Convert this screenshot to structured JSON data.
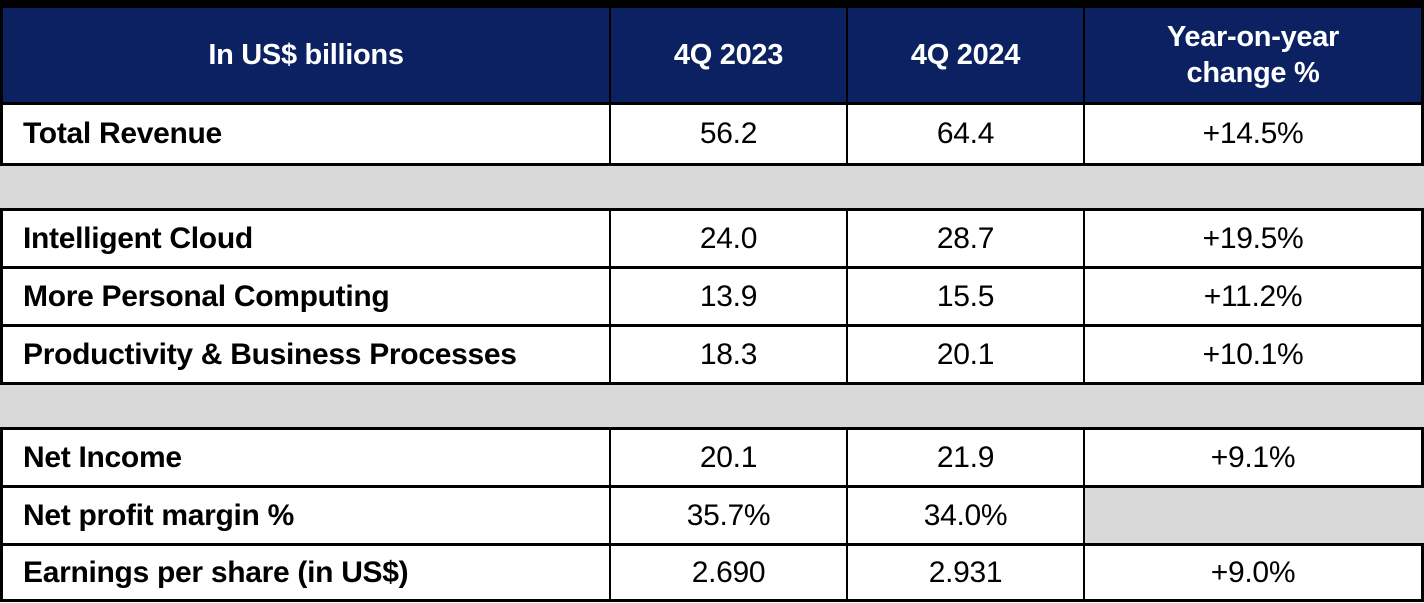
{
  "meta": {
    "description": "Quarterly financial results table comparing 4Q 2023 vs 4Q 2024 in US$ billions"
  },
  "colors": {
    "header_bg": "#0B2161",
    "header_text": "#FFFFFF",
    "spacer_gray": "#D9D9D9",
    "border": "#000000",
    "row_bg": "#FFFFFF",
    "body_text": "#000000"
  },
  "header": {
    "columns": [
      "In US$ billions",
      "4Q 2023",
      "4Q 2024",
      "Year-on-year change %"
    ]
  },
  "table": {
    "rows": [
      {
        "type": "data",
        "label": "Total Revenue",
        "q4_2023": "56.2",
        "q4_2024": "64.4",
        "yoy": "+14.5%"
      },
      {
        "type": "spacer"
      },
      {
        "type": "data",
        "label": "Intelligent Cloud",
        "q4_2023": "24.0",
        "q4_2024": "28.7",
        "yoy": "+19.5%"
      },
      {
        "type": "data",
        "label": "More Personal Computing",
        "q4_2023": "13.9",
        "q4_2024": "15.5",
        "yoy": "+11.2%"
      },
      {
        "type": "data",
        "label": "Productivity & Business Processes",
        "q4_2023": "18.3",
        "q4_2024": "20.1",
        "yoy": "+10.1%"
      },
      {
        "type": "spacer"
      },
      {
        "type": "data",
        "label": "Net Income",
        "q4_2023": "20.1",
        "q4_2024": "21.9",
        "yoy": "+9.1%"
      },
      {
        "type": "data",
        "label": "Net profit margin %",
        "q4_2023": "35.7%",
        "q4_2024": "34.0%",
        "yoy": "",
        "yoy_gray": true
      },
      {
        "type": "data",
        "label": "Earnings per share (in US$)",
        "q4_2023": "2.690",
        "q4_2024": "2.931",
        "yoy": "+9.0%"
      }
    ]
  },
  "chart_data": {
    "type": "table",
    "title": "In US$ billions",
    "columns": [
      "In US$ billions",
      "4Q 2023",
      "4Q 2024",
      "Year-on-year change %"
    ],
    "categories": [
      "Total Revenue",
      "Intelligent Cloud",
      "More Personal Computing",
      "Productivity & Business Processes",
      "Net Income",
      "Net profit margin %",
      "Earnings per share (in US$)"
    ],
    "series": [
      {
        "name": "4Q 2023",
        "values": [
          56.2,
          24.0,
          13.9,
          18.3,
          20.1,
          "35.7%",
          2.69
        ]
      },
      {
        "name": "4Q 2024",
        "values": [
          64.4,
          28.7,
          15.5,
          20.1,
          21.9,
          "34.0%",
          2.931
        ]
      }
    ],
    "year_on_year_change": [
      "+14.5%",
      "+19.5%",
      "+11.2%",
      "+10.1%",
      "+9.1%",
      null,
      "+9.0%"
    ],
    "notes": "Gray spacer bands separate Total Revenue, segment breakdown, and profitability sections; Net profit margin % has no year-on-year change cell (gray)."
  }
}
